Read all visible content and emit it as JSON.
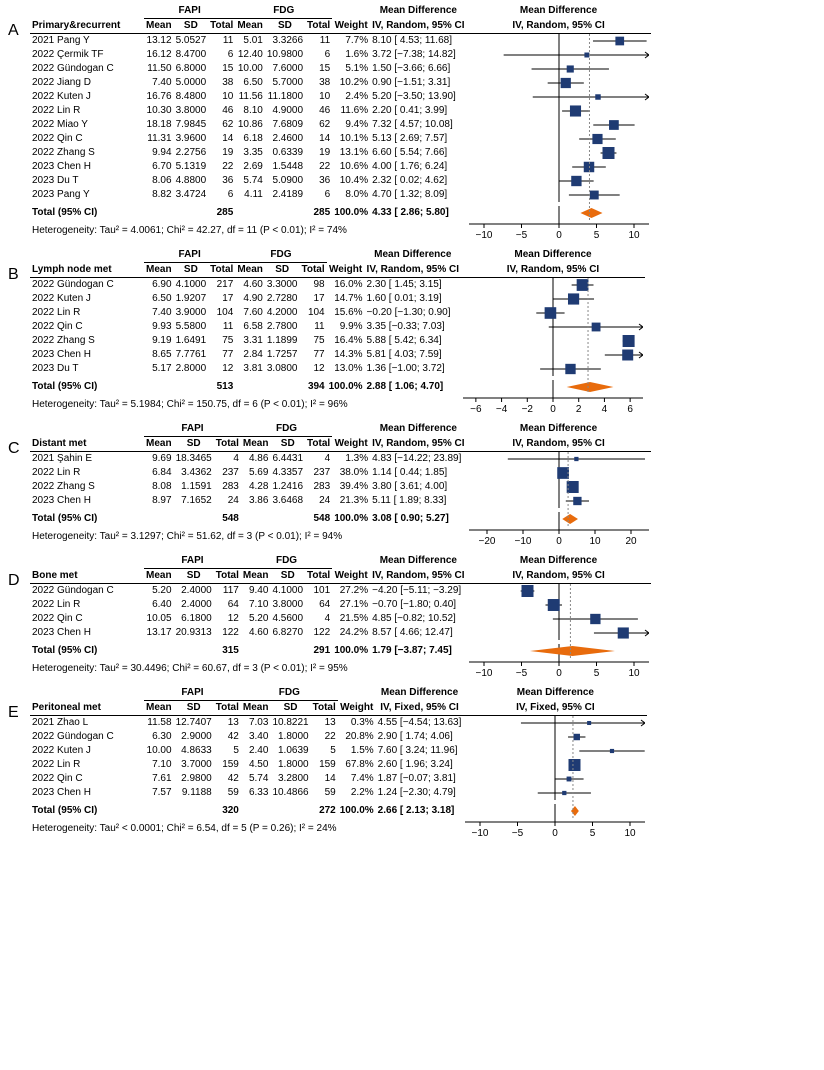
{
  "global_style": {
    "square_color": "#1f3b73",
    "diamond_color": "#e86b0c",
    "axis_color": "#000000",
    "refline_color": "#000000",
    "effectline_dash": "2,2",
    "effectline_color": "#888888",
    "ci_line_width": 1,
    "font_family": "Arial"
  },
  "col_headers": {
    "fapi": "FAPI",
    "fdg": "FDG",
    "mean": "Mean",
    "sd": "SD",
    "total": "Total",
    "weight": "Weight",
    "md_title": "Mean Difference",
    "md_random": "IV, Random, 95% CI",
    "md_fixed": "IV, Fixed, 95% CI"
  },
  "panels": [
    {
      "id": "A",
      "outcome": "Primary&recurrent",
      "model": "random",
      "axis": {
        "min": -12,
        "max": 12,
        "ticks": [
          -10,
          -5,
          0,
          5,
          10
        ]
      },
      "rows": [
        {
          "study": "2021 Pang Y",
          "f_mean": "13.12",
          "f_sd": "5.0527",
          "f_n": "11",
          "g_mean": "5.01",
          "g_sd": "3.3266",
          "g_n": "11",
          "w": "7.7%",
          "md": "8.10 [ 4.53; 11.68]",
          "est": 8.1,
          "lo": 4.53,
          "hi": 11.68
        },
        {
          "study": "2022 Çermik TF",
          "f_mean": "16.12",
          "f_sd": "8.4700",
          "f_n": "6",
          "g_mean": "12.40",
          "g_sd": "10.9800",
          "g_n": "6",
          "w": "1.6%",
          "md": "3.72 [−7.38; 14.82]",
          "est": 3.72,
          "lo": -7.38,
          "hi": 14.82
        },
        {
          "study": "2022 Gündogan C",
          "f_mean": "11.50",
          "f_sd": "6.8000",
          "f_n": "15",
          "g_mean": "10.00",
          "g_sd": "7.6000",
          "g_n": "15",
          "w": "5.1%",
          "md": "1.50 [−3.66;  6.66]",
          "est": 1.5,
          "lo": -3.66,
          "hi": 6.66
        },
        {
          "study": "2022 Jiang D",
          "f_mean": "7.40",
          "f_sd": "5.0000",
          "f_n": "38",
          "g_mean": "6.50",
          "g_sd": "5.7000",
          "g_n": "38",
          "w": "10.2%",
          "md": "0.90 [−1.51;  3.31]",
          "est": 0.9,
          "lo": -1.51,
          "hi": 3.31
        },
        {
          "study": "2022 Kuten J",
          "f_mean": "16.76",
          "f_sd": "8.4800",
          "f_n": "10",
          "g_mean": "11.56",
          "g_sd": "11.1800",
          "g_n": "10",
          "w": "2.4%",
          "md": "5.20 [−3.50; 13.90]",
          "est": 5.2,
          "lo": -3.5,
          "hi": 13.9
        },
        {
          "study": "2022 Lin R",
          "f_mean": "10.30",
          "f_sd": "3.8000",
          "f_n": "46",
          "g_mean": "8.10",
          "g_sd": "4.9000",
          "g_n": "46",
          "w": "11.6%",
          "md": "2.20 [ 0.41;  3.99]",
          "est": 2.2,
          "lo": 0.41,
          "hi": 3.99
        },
        {
          "study": "2022 Miao Y",
          "f_mean": "18.18",
          "f_sd": "7.9845",
          "f_n": "62",
          "g_mean": "10.86",
          "g_sd": "7.6809",
          "g_n": "62",
          "w": "9.4%",
          "md": "7.32 [ 4.57; 10.08]",
          "est": 7.32,
          "lo": 4.57,
          "hi": 10.08
        },
        {
          "study": "2022 Qin C",
          "f_mean": "11.31",
          "f_sd": "3.9600",
          "f_n": "14",
          "g_mean": "6.18",
          "g_sd": "2.4600",
          "g_n": "14",
          "w": "10.1%",
          "md": "5.13 [ 2.69;  7.57]",
          "est": 5.13,
          "lo": 2.69,
          "hi": 7.57
        },
        {
          "study": "2022 Zhang S",
          "f_mean": "9.94",
          "f_sd": "2.2756",
          "f_n": "19",
          "g_mean": "3.35",
          "g_sd": "0.6339",
          "g_n": "19",
          "w": "13.1%",
          "md": "6.60 [ 5.54;  7.66]",
          "est": 6.6,
          "lo": 5.54,
          "hi": 7.66
        },
        {
          "study": "2023 Chen H",
          "f_mean": "6.70",
          "f_sd": "5.1319",
          "f_n": "22",
          "g_mean": "2.69",
          "g_sd": "1.5448",
          "g_n": "22",
          "w": "10.6%",
          "md": "4.00 [ 1.76;  6.24]",
          "est": 4.0,
          "lo": 1.76,
          "hi": 6.24
        },
        {
          "study": "2023 Du T",
          "f_mean": "8.06",
          "f_sd": "4.8800",
          "f_n": "36",
          "g_mean": "5.74",
          "g_sd": "5.0900",
          "g_n": "36",
          "w": "10.4%",
          "md": "2.32 [ 0.02;  4.62]",
          "est": 2.32,
          "lo": 0.02,
          "hi": 4.62
        },
        {
          "study": "2023 Pang Y",
          "f_mean": "8.82",
          "f_sd": "3.4724",
          "f_n": "6",
          "g_mean": "4.11",
          "g_sd": "2.4189",
          "g_n": "6",
          "w": "8.0%",
          "md": "4.70 [ 1.32;  8.09]",
          "est": 4.7,
          "lo": 1.32,
          "hi": 8.09
        }
      ],
      "total": {
        "f_n": "285",
        "g_n": "285",
        "w": "100.0%",
        "md": "4.33 [ 2.86;  5.80]",
        "est": 4.33,
        "lo": 2.86,
        "hi": 5.8
      },
      "het": "Heterogeneity: Tau² = 4.0061; Chi² = 42.27, df = 11 (P < 0.01); I² = 74%"
    },
    {
      "id": "B",
      "outcome": "Lymph node met",
      "model": "random",
      "axis": {
        "min": -7,
        "max": 7,
        "ticks": [
          -6,
          -4,
          -2,
          0,
          2,
          4,
          6
        ]
      },
      "rows": [
        {
          "study": "2022 Gündogan C",
          "f_mean": "6.90",
          "f_sd": "4.1000",
          "f_n": "217",
          "g_mean": "4.60",
          "g_sd": "3.3000",
          "g_n": "98",
          "w": "16.0%",
          "md": "2.30 [ 1.45; 3.15]",
          "est": 2.3,
          "lo": 1.45,
          "hi": 3.15
        },
        {
          "study": "2022 Kuten J",
          "f_mean": "6.50",
          "f_sd": "1.9207",
          "f_n": "17",
          "g_mean": "4.90",
          "g_sd": "2.7280",
          "g_n": "17",
          "w": "14.7%",
          "md": "1.60 [ 0.01; 3.19]",
          "est": 1.6,
          "lo": 0.01,
          "hi": 3.19
        },
        {
          "study": "2022 Lin R",
          "f_mean": "7.40",
          "f_sd": "3.9000",
          "f_n": "104",
          "g_mean": "7.60",
          "g_sd": "4.2000",
          "g_n": "104",
          "w": "15.6%",
          "md": "−0.20 [−1.30; 0.90]",
          "est": -0.2,
          "lo": -1.3,
          "hi": 0.9
        },
        {
          "study": "2022 Qin C",
          "f_mean": "9.93",
          "f_sd": "5.5800",
          "f_n": "11",
          "g_mean": "6.58",
          "g_sd": "2.7800",
          "g_n": "11",
          "w": "9.9%",
          "md": "3.35 [−0.33; 7.03]",
          "est": 3.35,
          "lo": -0.33,
          "hi": 7.03
        },
        {
          "study": "2022 Zhang S",
          "f_mean": "9.19",
          "f_sd": "1.6491",
          "f_n": "75",
          "g_mean": "3.31",
          "g_sd": "1.1899",
          "g_n": "75",
          "w": "16.4%",
          "md": "5.88 [ 5.42; 6.34]",
          "est": 5.88,
          "lo": 5.42,
          "hi": 6.34
        },
        {
          "study": "2023 Chen H",
          "f_mean": "8.65",
          "f_sd": "7.7761",
          "f_n": "77",
          "g_mean": "2.84",
          "g_sd": "1.7257",
          "g_n": "77",
          "w": "14.3%",
          "md": "5.81 [ 4.03; 7.59]",
          "est": 5.81,
          "lo": 4.03,
          "hi": 7.59
        },
        {
          "study": "2023 Du T",
          "f_mean": "5.17",
          "f_sd": "2.8000",
          "f_n": "12",
          "g_mean": "3.81",
          "g_sd": "3.0800",
          "g_n": "12",
          "w": "13.0%",
          "md": "1.36 [−1.00; 3.72]",
          "est": 1.36,
          "lo": -1.0,
          "hi": 3.72
        }
      ],
      "total": {
        "f_n": "513",
        "g_n": "394",
        "w": "100.0%",
        "md": "2.88 [ 1.06;  4.70]",
        "est": 2.88,
        "lo": 1.06,
        "hi": 4.7
      },
      "het": "Heterogeneity: Tau² = 5.1984; Chi² = 150.75, df = 6 (P < 0.01); I² = 96%"
    },
    {
      "id": "C",
      "outcome": "Distant met",
      "model": "random",
      "axis": {
        "min": -25,
        "max": 25,
        "ticks": [
          -20,
          -10,
          0,
          10,
          20
        ]
      },
      "rows": [
        {
          "study": "2021 Şahin E",
          "f_mean": "9.69",
          "f_sd": "18.3465",
          "f_n": "4",
          "g_mean": "4.86",
          "g_sd": "6.4431",
          "g_n": "4",
          "w": "1.3%",
          "md": "4.83 [−14.22; 23.89]",
          "est": 4.83,
          "lo": -14.22,
          "hi": 23.89
        },
        {
          "study": "2022 Lin R",
          "f_mean": "6.84",
          "f_sd": "3.4362",
          "f_n": "237",
          "g_mean": "5.69",
          "g_sd": "4.3357",
          "g_n": "237",
          "w": "38.0%",
          "md": "1.14 [  0.44;  1.85]",
          "est": 1.14,
          "lo": 0.44,
          "hi": 1.85
        },
        {
          "study": "2022 Zhang S",
          "f_mean": "8.08",
          "f_sd": "1.1591",
          "f_n": "283",
          "g_mean": "4.28",
          "g_sd": "1.2416",
          "g_n": "283",
          "w": "39.4%",
          "md": "3.80 [  3.61;  4.00]",
          "est": 3.8,
          "lo": 3.61,
          "hi": 4.0
        },
        {
          "study": "2023 Chen H",
          "f_mean": "8.97",
          "f_sd": "7.1652",
          "f_n": "24",
          "g_mean": "3.86",
          "g_sd": "3.6468",
          "g_n": "24",
          "w": "21.3%",
          "md": "5.11 [  1.89;  8.33]",
          "est": 5.11,
          "lo": 1.89,
          "hi": 8.33
        }
      ],
      "total": {
        "f_n": "548",
        "g_n": "548",
        "w": "100.0%",
        "md": "3.08 [ 0.90;  5.27]",
        "est": 3.08,
        "lo": 0.9,
        "hi": 5.27
      },
      "het": "Heterogeneity: Tau² = 3.1297; Chi² = 51.62, df = 3 (P < 0.01); I² = 94%"
    },
    {
      "id": "D",
      "outcome": "Bone met",
      "model": "random",
      "axis": {
        "min": -12,
        "max": 12,
        "ticks": [
          -10,
          -5,
          0,
          5,
          10
        ]
      },
      "rows": [
        {
          "study": "2022 Gündogan C",
          "f_mean": "5.20",
          "f_sd": "2.4000",
          "f_n": "117",
          "g_mean": "9.40",
          "g_sd": "4.1000",
          "g_n": "101",
          "w": "27.2%",
          "md": "−4.20 [−5.11; −3.29]",
          "est": -4.2,
          "lo": -5.11,
          "hi": -3.29
        },
        {
          "study": "2022 Lin R",
          "f_mean": "6.40",
          "f_sd": "2.4000",
          "f_n": "64",
          "g_mean": "7.10",
          "g_sd": "3.8000",
          "g_n": "64",
          "w": "27.1%",
          "md": "−0.70 [−1.80;  0.40]",
          "est": -0.7,
          "lo": -1.8,
          "hi": 0.4
        },
        {
          "study": "2022 Qin C",
          "f_mean": "10.05",
          "f_sd": "6.1800",
          "f_n": "12",
          "g_mean": "5.20",
          "g_sd": "4.5600",
          "g_n": "4",
          "w": "21.5%",
          "md": "4.85 [−0.82; 10.52]",
          "est": 4.85,
          "lo": -0.82,
          "hi": 10.52
        },
        {
          "study": "2023 Chen H",
          "f_mean": "13.17",
          "f_sd": "20.9313",
          "f_n": "122",
          "g_mean": "4.60",
          "g_sd": "6.8270",
          "g_n": "122",
          "w": "24.2%",
          "md": "8.57 [ 4.66; 12.47]",
          "est": 8.57,
          "lo": 4.66,
          "hi": 12.47
        }
      ],
      "total": {
        "f_n": "315",
        "g_n": "291",
        "w": "100.0%",
        "md": "1.79 [−3.87;  7.45]",
        "est": 1.79,
        "lo": -3.87,
        "hi": 7.45
      },
      "het": "Heterogeneity: Tau² = 30.4496; Chi² = 60.67, df = 3 (P < 0.01); I² = 95%"
    },
    {
      "id": "E",
      "outcome": "Peritoneal met",
      "model": "fixed",
      "axis": {
        "min": -12,
        "max": 12,
        "ticks": [
          -10,
          -5,
          0,
          5,
          10
        ]
      },
      "rows": [
        {
          "study": "2021 Zhao L",
          "f_mean": "11.58",
          "f_sd": "12.7407",
          "f_n": "13",
          "g_mean": "7.03",
          "g_sd": "10.8221",
          "g_n": "13",
          "w": "0.3%",
          "md": "4.55 [−4.54; 13.63]",
          "est": 4.55,
          "lo": -4.54,
          "hi": 13.63
        },
        {
          "study": "2022 Gündogan C",
          "f_mean": "6.30",
          "f_sd": "2.9000",
          "f_n": "42",
          "g_mean": "3.40",
          "g_sd": "1.8000",
          "g_n": "22",
          "w": "20.8%",
          "md": "2.90 [ 1.74;  4.06]",
          "est": 2.9,
          "lo": 1.74,
          "hi": 4.06
        },
        {
          "study": "2022 Kuten J",
          "f_mean": "10.00",
          "f_sd": "4.8633",
          "f_n": "5",
          "g_mean": "2.40",
          "g_sd": "1.0639",
          "g_n": "5",
          "w": "1.5%",
          "md": "7.60 [ 3.24; 11.96]",
          "est": 7.6,
          "lo": 3.24,
          "hi": 11.96
        },
        {
          "study": "2022 Lin R",
          "f_mean": "7.10",
          "f_sd": "3.7000",
          "f_n": "159",
          "g_mean": "4.50",
          "g_sd": "1.8000",
          "g_n": "159",
          "w": "67.8%",
          "md": "2.60 [ 1.96;  3.24]",
          "est": 2.6,
          "lo": 1.96,
          "hi": 3.24
        },
        {
          "study": "2022 Qin C",
          "f_mean": "7.61",
          "f_sd": "2.9800",
          "f_n": "42",
          "g_mean": "5.74",
          "g_sd": "3.2800",
          "g_n": "14",
          "w": "7.4%",
          "md": "1.87 [−0.07;  3.81]",
          "est": 1.87,
          "lo": -0.07,
          "hi": 3.81
        },
        {
          "study": "2023 Chen H",
          "f_mean": "7.57",
          "f_sd": "9.1188",
          "f_n": "59",
          "g_mean": "6.33",
          "g_sd": "10.4866",
          "g_n": "59",
          "w": "2.2%",
          "md": "1.24 [−2.30;  4.79]",
          "est": 1.24,
          "lo": -2.3,
          "hi": 4.79
        }
      ],
      "total": {
        "f_n": "320",
        "g_n": "272",
        "w": "100.0%",
        "md": "2.66 [ 2.13;  3.18]",
        "est": 2.66,
        "lo": 2.13,
        "hi": 3.18
      },
      "het": "Heterogeneity: Tau² < 0.0001; Chi² = 6.54, df = 5 (P = 0.26); I² = 24%"
    }
  ]
}
